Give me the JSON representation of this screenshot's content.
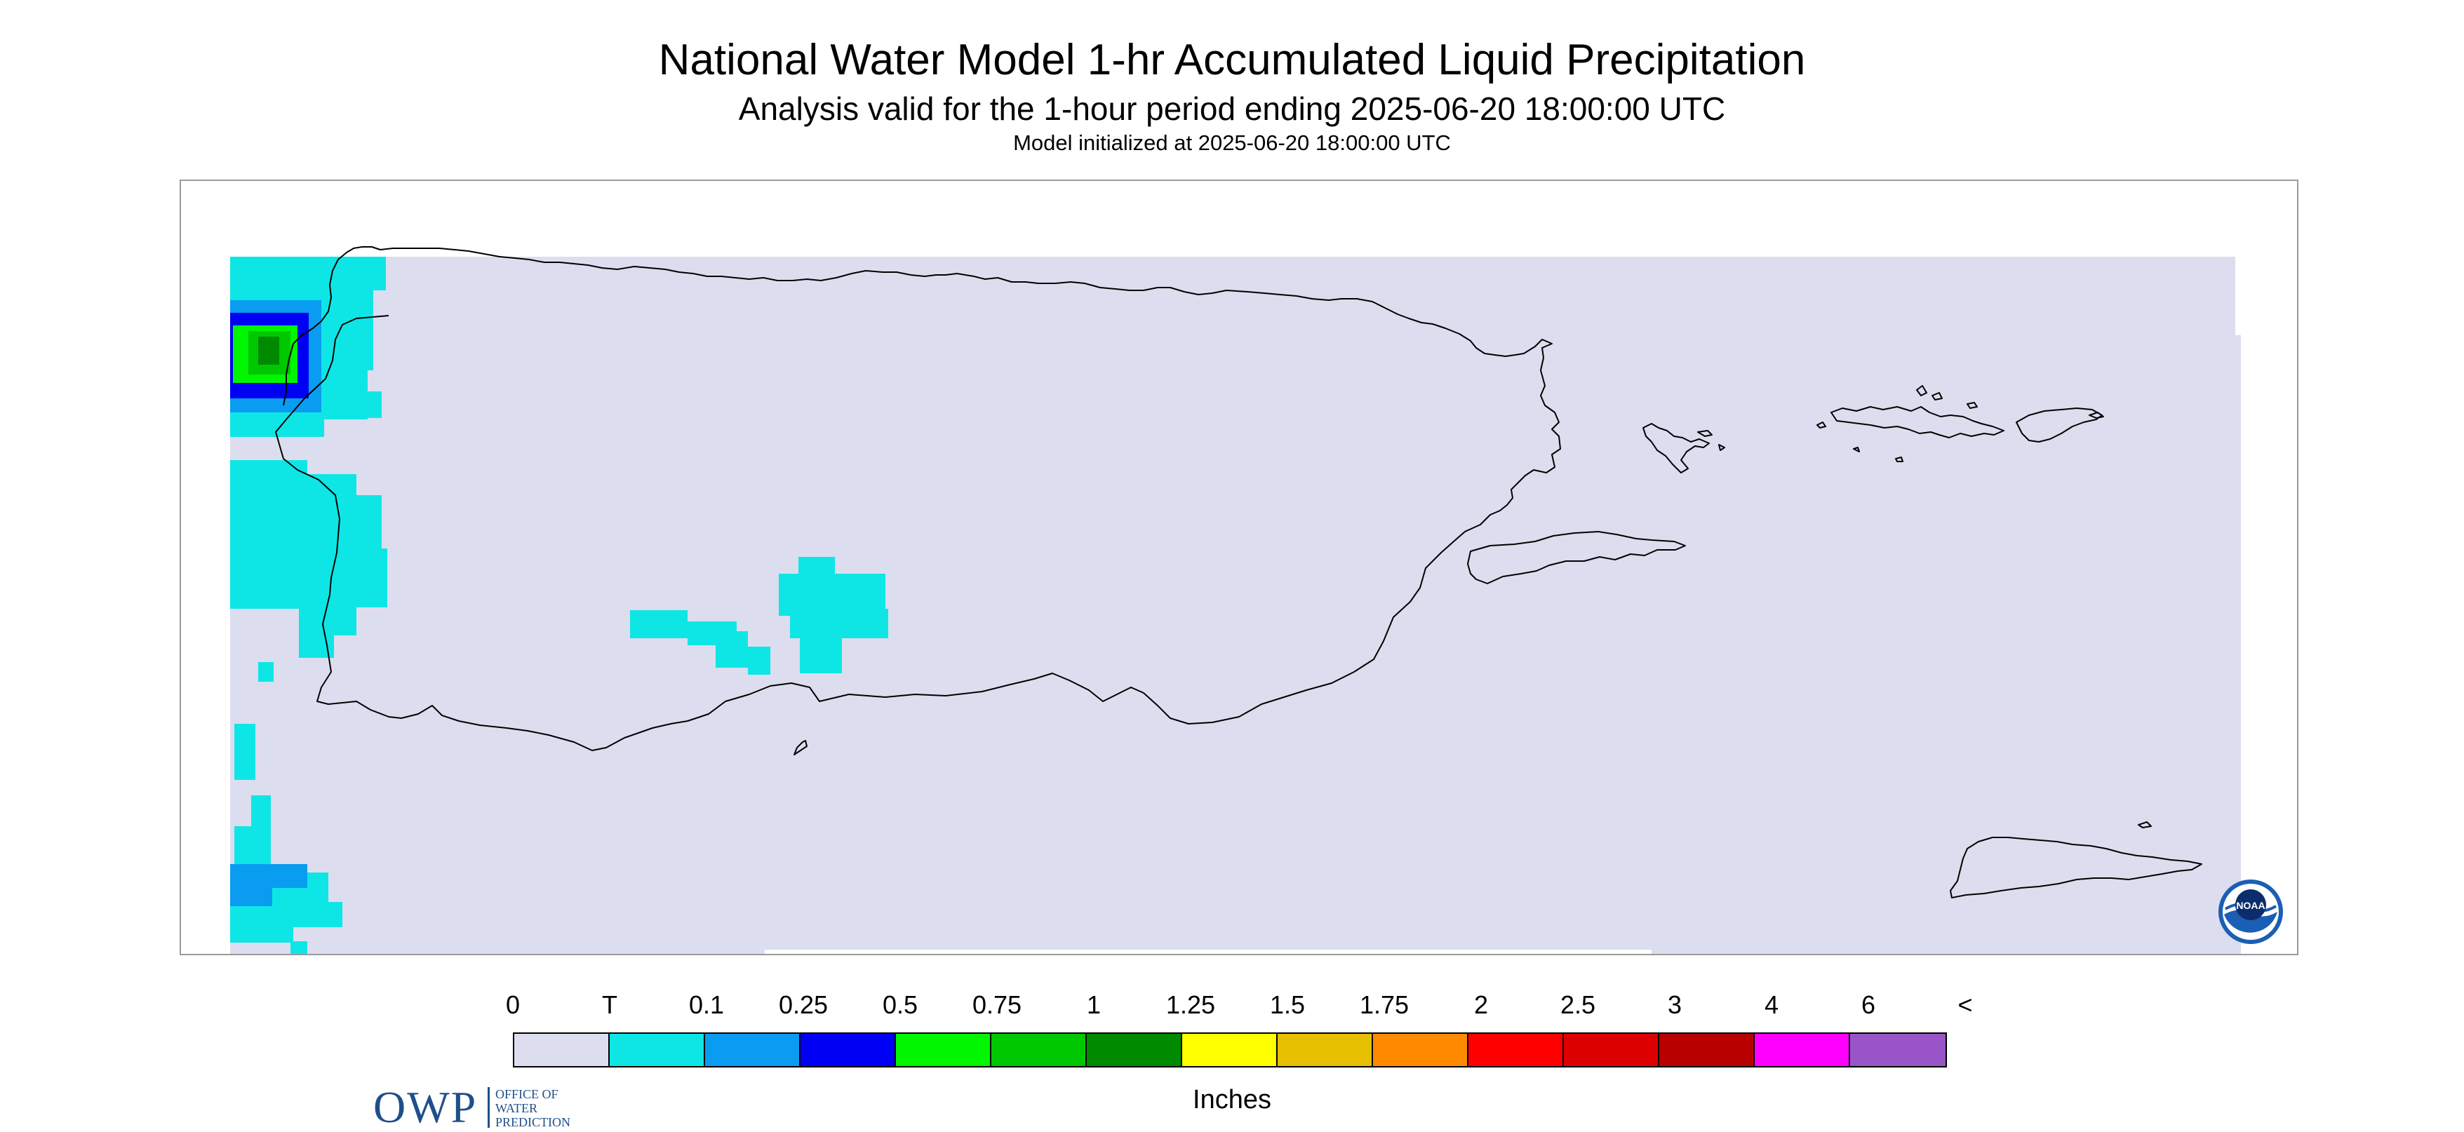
{
  "title": "National Water Model 1-hr Accumulated Liquid Precipitation",
  "subtitle": "Analysis valid for the 1-hour period ending 2025-06-20 18:00:00 UTC",
  "init_text": "Model initialized at 2025-06-20 18:00:00 UTC",
  "logos": {
    "owp_word": "OWP",
    "owp_lines": [
      "OFFICE OF",
      "WATER",
      "PREDICTION"
    ],
    "noaa_word": "NOAA"
  },
  "legend": {
    "labels": [
      "0",
      "T",
      "0.1",
      "0.25",
      "0.5",
      "0.75",
      "1",
      "1.25",
      "1.5",
      "1.75",
      "2",
      "2.5",
      "3",
      "4",
      "6",
      "<"
    ],
    "colors": [
      "#dcddee",
      "#0ee6e6",
      "#0a9cf0",
      "#0000f4",
      "#00f500",
      "#00c800",
      "#008a00",
      "#ffff00",
      "#e6c000",
      "#ff8a00",
      "#ff0000",
      "#dd0000",
      "#b80000",
      "#ff00ff",
      "#9955c8"
    ],
    "units": "Inches"
  },
  "map": {
    "background_color": "#dcddee",
    "precip_colors": {
      "trace": "#0ee6e6",
      "light": "#0a9cf0",
      "moderate": "#0000f4",
      "heavy": "#00f500",
      "heavier": "#00c800",
      "core": "#008a00"
    },
    "coastline_color": "#000000"
  }
}
